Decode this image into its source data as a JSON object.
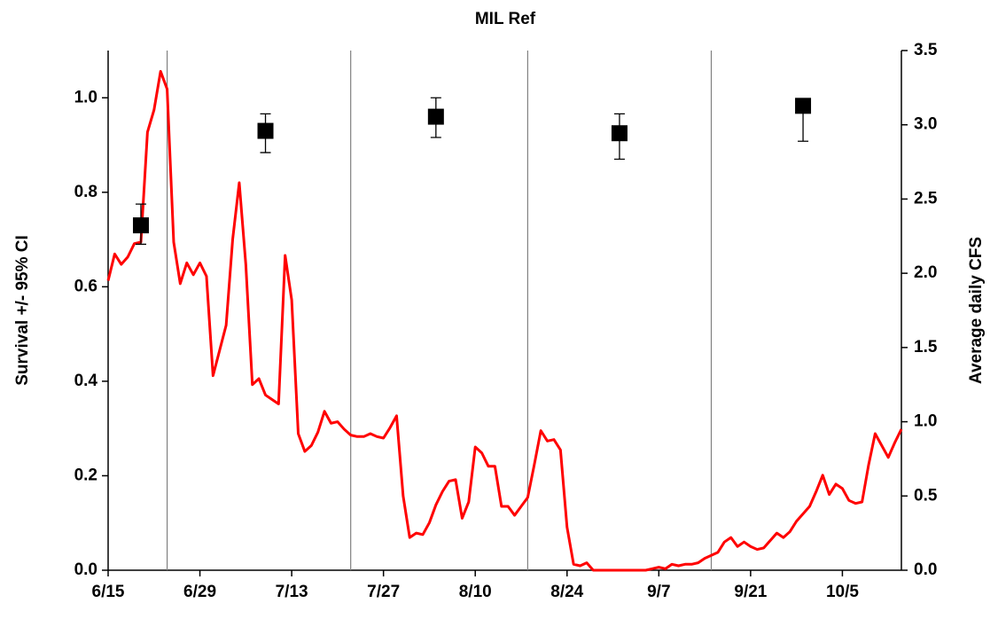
{
  "chart_data": {
    "type": "combo",
    "title": "MIL Ref",
    "y_label": "Survival +/- 95% CI",
    "y2_label": "Average daily CFS",
    "xlim": [
      "6/15",
      "10/14"
    ],
    "xticks": [
      "6/15",
      "6/29",
      "7/13",
      "7/27",
      "8/10",
      "8/24",
      "9/7",
      "9/21",
      "10/5"
    ],
    "ylim": [
      0,
      1.1
    ],
    "yticks": [
      {
        "value": 0,
        "label": "0.0"
      },
      0.2,
      0.4,
      0.6,
      0.8,
      {
        "value": 1,
        "label": "1.0"
      }
    ],
    "y2lim": [
      0,
      3.5
    ],
    "y2ticks": [
      {
        "value": 0,
        "label": "0.0"
      },
      0.5,
      {
        "value": 1,
        "label": "1.0"
      },
      1.5,
      {
        "value": 2,
        "label": "2.0"
      },
      2.5,
      {
        "value": 3,
        "label": "3.0"
      },
      3.5
    ],
    "grid": false,
    "dividers": [
      "6/24",
      "7/22",
      "8/18",
      "9/15"
    ],
    "divider_color": "#808080",
    "series": [
      {
        "type": "scatter",
        "color": "#000000",
        "x": [
          "6/20",
          "7/9",
          "8/4",
          "9/1",
          "9/29"
        ],
        "values": [
          0.73,
          0.93,
          0.96,
          0.925,
          0.983
        ],
        "error_minus": [
          0.04,
          0.046,
          0.044,
          0.055,
          0.075
        ],
        "error_plus": [
          0.045,
          0.036,
          0.04,
          0.041,
          0
        ]
      },
      {
        "type": "line",
        "axis": "y2",
        "color": "#ff0000",
        "x": [
          "6/15",
          "6/16",
          "6/17",
          "6/18",
          "6/19",
          "6/20",
          "6/21",
          "6/22",
          "6/23",
          "6/24",
          "6/25",
          "6/26",
          "6/27",
          "6/28",
          "6/29",
          "6/30",
          "7/1",
          "7/2",
          "7/3",
          "7/4",
          "7/5",
          "7/6",
          "7/7",
          "7/8",
          "7/9",
          "7/10",
          "7/11",
          "7/12",
          "7/13",
          "7/14",
          "7/15",
          "7/16",
          "7/17",
          "7/18",
          "7/19",
          "7/20",
          "7/21",
          "7/22",
          "7/23",
          "7/24",
          "7/25",
          "7/26",
          "7/27",
          "7/28",
          "7/29",
          "7/30",
          "7/31",
          "8/1",
          "8/2",
          "8/3",
          "8/4",
          "8/5",
          "8/6",
          "8/7",
          "8/8",
          "8/9",
          "8/10",
          "8/11",
          "8/12",
          "8/13",
          "8/14",
          "8/15",
          "8/16",
          "8/17",
          "8/18",
          "8/19",
          "8/20",
          "8/21",
          "8/22",
          "8/23",
          "8/24",
          "8/25",
          "8/26",
          "8/27",
          "8/28",
          "8/29",
          "8/30",
          "8/31",
          "9/1",
          "9/2",
          "9/3",
          "9/4",
          "9/5",
          "9/6",
          "9/7",
          "9/8",
          "9/9",
          "9/10",
          "9/11",
          "9/12",
          "9/13",
          "9/14",
          "9/15",
          "9/16",
          "9/17",
          "9/18",
          "9/19",
          "9/20",
          "9/21",
          "9/22",
          "9/23",
          "9/24",
          "9/25",
          "9/26",
          "9/27",
          "9/28",
          "9/29",
          "9/30",
          "10/1",
          "10/2",
          "10/3",
          "10/4",
          "10/5",
          "10/6",
          "10/7",
          "10/8",
          "10/9",
          "10/10",
          "10/11",
          "10/12",
          "10/13",
          "10/14"
        ],
        "values": [
          1.95,
          2.13,
          2.06,
          2.11,
          2.2,
          2.21,
          2.95,
          3.1,
          3.36,
          3.24,
          2.21,
          1.93,
          2.07,
          1.99,
          2.07,
          1.98,
          1.31,
          1.48,
          1.65,
          2.23,
          2.61,
          2.06,
          1.25,
          1.29,
          1.18,
          1.15,
          1.12,
          2.12,
          1.82,
          0.92,
          0.8,
          0.84,
          0.93,
          1.07,
          0.99,
          1.0,
          0.95,
          0.91,
          0.9,
          0.9,
          0.92,
          0.9,
          0.89,
          0.96,
          1.04,
          0.5,
          0.22,
          0.25,
          0.24,
          0.32,
          0.44,
          0.53,
          0.6,
          0.61,
          0.35,
          0.46,
          0.83,
          0.79,
          0.7,
          0.7,
          0.43,
          0.43,
          0.37,
          0.43,
          0.49,
          0.71,
          0.94,
          0.87,
          0.88,
          0.81,
          0.29,
          0.04,
          0.03,
          0.05,
          0,
          0,
          0,
          0,
          0,
          0,
          0,
          0,
          0,
          0.01,
          0.02,
          0.01,
          0.04,
          0.03,
          0.04,
          0.04,
          0.05,
          0.08,
          0.1,
          0.12,
          0.19,
          0.22,
          0.16,
          0.19,
          0.16,
          0.14,
          0.15,
          0.2,
          0.25,
          0.22,
          0.26,
          0.33,
          0.38,
          0.43,
          0.53,
          0.64,
          0.51,
          0.58,
          0.55,
          0.47,
          0.45,
          0.46,
          0.71,
          0.92,
          0.84,
          0.76,
          0.86,
          0.95
        ]
      }
    ]
  }
}
